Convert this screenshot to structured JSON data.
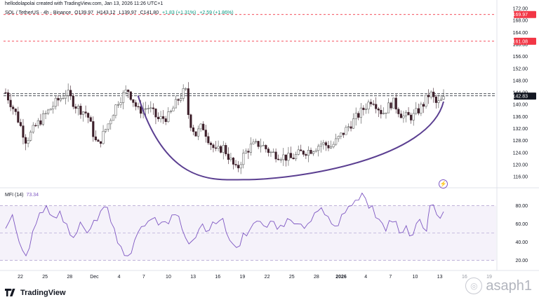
{
  "header": {
    "credit": "hellodolapolai created with TradingView.com, Jan 13, 2026 11:26 UTC+1",
    "symbol": "SOL / TetherUS · 4h · Binance",
    "open": "O139.97",
    "high": "H143.12",
    "low": "L139.97",
    "close": "C141.80",
    "change": "+1.83 (+1.31%)",
    "change2": "+2.59 (+1.86%)"
  },
  "indicator": {
    "name": "MFI (14)",
    "value": "73.34"
  },
  "brand": {
    "logo_text": "TradingView"
  },
  "watermark": {
    "text": "asaph1"
  },
  "colors": {
    "up": "#089981",
    "down": "#3d1f2a",
    "cup": "#5b3f91",
    "mfi_line": "#7e57c2",
    "mfi_band": "#ede7f6",
    "resistance": "#f23645"
  },
  "chart_data": [
    {
      "type": "candlestick",
      "symbol": "SOL / TetherUS",
      "interval": "4h",
      "y_ticks": [
        116.0,
        120.0,
        124.0,
        128.0,
        132.0,
        136.0,
        140.0,
        144.0,
        148.0,
        152.0,
        156.0,
        160.0,
        164.0,
        168.0,
        172.0
      ],
      "ylim": [
        113,
        172
      ],
      "x_ticks": [
        "22",
        "25",
        "28",
        "Dec",
        "4",
        "7",
        "10",
        "13",
        "16",
        "19",
        "22",
        "25",
        "28",
        "2026",
        "4",
        "7",
        "10",
        "13",
        "16",
        "19"
      ],
      "price_labels": [
        {
          "text": "169.97",
          "value": 169.97
        },
        {
          "text": "161.08",
          "value": 161.08
        },
        {
          "text": "142.83",
          "value": 142.83
        }
      ],
      "horizontal_lines": [
        169.97,
        161.08,
        143.6,
        142.9
      ],
      "close_path": [
        [
          0,
          144
        ],
        [
          3,
          137
        ],
        [
          6,
          128
        ],
        [
          9,
          133
        ],
        [
          12,
          137
        ],
        [
          15,
          141
        ],
        [
          18,
          144
        ],
        [
          21,
          139
        ],
        [
          24,
          137
        ],
        [
          27,
          126
        ],
        [
          30,
          133
        ],
        [
          33,
          141
        ],
        [
          36,
          145
        ],
        [
          39,
          138
        ],
        [
          42,
          139
        ],
        [
          45,
          135
        ],
        [
          48,
          136
        ],
        [
          51,
          142
        ],
        [
          53,
          145
        ],
        [
          54,
          135
        ],
        [
          56,
          130
        ],
        [
          58,
          133
        ],
        [
          60,
          128
        ],
        [
          62,
          124
        ],
        [
          64,
          126
        ],
        [
          66,
          122
        ],
        [
          68,
          118
        ],
        [
          70,
          123
        ],
        [
          72,
          126
        ],
        [
          75,
          127
        ],
        [
          78,
          124
        ],
        [
          81,
          123
        ],
        [
          84,
          122
        ],
        [
          87,
          124
        ],
        [
          90,
          125
        ],
        [
          93,
          127
        ],
        [
          96,
          126
        ],
        [
          99,
          130
        ],
        [
          102,
          134
        ],
        [
          105,
          138
        ],
        [
          108,
          142
        ],
        [
          111,
          137
        ],
        [
          114,
          141
        ],
        [
          117,
          136
        ],
        [
          120,
          136
        ],
        [
          123,
          140
        ],
        [
          125,
          144
        ],
        [
          127,
          140
        ],
        [
          129,
          141.8
        ]
      ],
      "cup_curve": {
        "start": [
          39,
          143
        ],
        "bottom": [
          70,
          115
        ],
        "end": [
          129,
          141
        ]
      }
    },
    {
      "type": "line",
      "name": "MFI (14)",
      "y_ticks": [
        20.0,
        40.0,
        60.0,
        80.0
      ],
      "ylim": [
        12,
        88
      ],
      "band": [
        20,
        80
      ],
      "mid": 50,
      "points": [
        [
          0,
          55
        ],
        [
          2,
          70
        ],
        [
          4,
          40
        ],
        [
          6,
          25
        ],
        [
          8,
          52
        ],
        [
          10,
          72
        ],
        [
          12,
          80
        ],
        [
          14,
          68
        ],
        [
          16,
          74
        ],
        [
          18,
          60
        ],
        [
          20,
          45
        ],
        [
          22,
          62
        ],
        [
          24,
          50
        ],
        [
          26,
          64
        ],
        [
          28,
          74
        ],
        [
          30,
          78
        ],
        [
          32,
          55
        ],
        [
          34,
          35
        ],
        [
          36,
          25
        ],
        [
          38,
          42
        ],
        [
          40,
          57
        ],
        [
          42,
          63
        ],
        [
          44,
          67
        ],
        [
          46,
          62
        ],
        [
          48,
          60
        ],
        [
          50,
          70
        ],
        [
          52,
          54
        ],
        [
          54,
          38
        ],
        [
          56,
          45
        ],
        [
          58,
          60
        ],
        [
          60,
          53
        ],
        [
          62,
          60
        ],
        [
          64,
          66
        ],
        [
          66,
          42
        ],
        [
          68,
          34
        ],
        [
          70,
          50
        ],
        [
          72,
          54
        ],
        [
          74,
          63
        ],
        [
          76,
          58
        ],
        [
          78,
          63
        ],
        [
          80,
          54
        ],
        [
          82,
          57
        ],
        [
          84,
          64
        ],
        [
          86,
          60
        ],
        [
          88,
          55
        ],
        [
          90,
          63
        ],
        [
          92,
          74
        ],
        [
          94,
          70
        ],
        [
          96,
          60
        ],
        [
          98,
          58
        ],
        [
          100,
          72
        ],
        [
          102,
          80
        ],
        [
          104,
          86
        ],
        [
          106,
          88
        ],
        [
          108,
          80
        ],
        [
          110,
          65
        ],
        [
          112,
          52
        ],
        [
          114,
          62
        ],
        [
          116,
          50
        ],
        [
          118,
          58
        ],
        [
          120,
          48
        ],
        [
          122,
          65
        ],
        [
          124,
          52
        ],
        [
          125,
          80
        ],
        [
          127,
          70
        ],
        [
          129,
          73.34
        ]
      ]
    }
  ]
}
